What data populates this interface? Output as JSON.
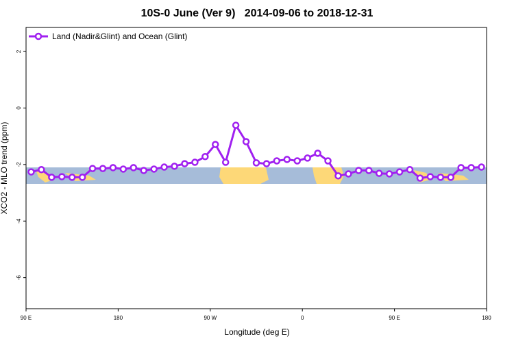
{
  "chart_data": {
    "type": "line",
    "title": "10S-0 June (Ver 9)   2014-09-06 to 2018-12-31",
    "xlabel": "Longitude (deg E)",
    "ylabel": "XCO2 - MLO trend (ppm)",
    "xlim": [
      90,
      540
    ],
    "xticks": [
      {
        "value": 90,
        "label": "90 E"
      },
      180,
      {
        "value": 270,
        "label": "90 W"
      },
      {
        "value": 360,
        "label": "0"
      },
      {
        "value": 450,
        "label": "90 E"
      },
      {
        "value": 540,
        "label": "180"
      }
    ],
    "ylim": [
      -7.1,
      2.85
    ],
    "yticks": [
      2,
      0,
      -2,
      -4,
      -6
    ],
    "legend": "top-left",
    "x": [
      95,
      105,
      115,
      125,
      135,
      145,
      155,
      165,
      175,
      185,
      195,
      205,
      215,
      225,
      235,
      245,
      255,
      265,
      275,
      285,
      295,
      305,
      315,
      325,
      335,
      345,
      355,
      365,
      375,
      385,
      395,
      405,
      415,
      425,
      435,
      445,
      455,
      465,
      475,
      485,
      495,
      505,
      515,
      525,
      535
    ],
    "series": [
      {
        "name": "Land (Nadir&Glint) and Ocean (Glint)",
        "color": "#a020f0",
        "values": [
          -2.26,
          -2.18,
          -2.45,
          -2.43,
          -2.45,
          -2.45,
          -2.14,
          -2.14,
          -2.11,
          -2.16,
          -2.11,
          -2.21,
          -2.16,
          -2.09,
          -2.06,
          -1.97,
          -1.92,
          -1.72,
          -1.29,
          -1.92,
          -0.61,
          -1.19,
          -1.94,
          -1.97,
          -1.87,
          -1.82,
          -1.87,
          -1.77,
          -1.6,
          -1.87,
          -2.4,
          -2.33,
          -2.21,
          -2.21,
          -2.31,
          -2.33,
          -2.26,
          -2.18,
          -2.48,
          -2.43,
          -2.45,
          -2.45,
          -2.11,
          -2.11,
          -2.09
        ]
      }
    ]
  }
}
